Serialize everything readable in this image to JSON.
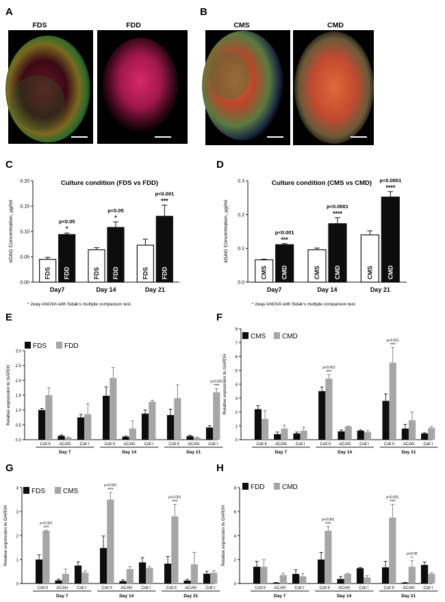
{
  "panels": {
    "A": {
      "letter": "A",
      "labels": [
        "FDS",
        "FDD"
      ]
    },
    "B": {
      "letter": "B",
      "labels": [
        "CMS",
        "CMD"
      ]
    }
  },
  "colors": {
    "open_bar": "#ffffff",
    "black_bar": "#0d0d0d",
    "grey_bar": "#a6a6a6",
    "axis": "#111111"
  },
  "footnote": "* 2way ANOVA with Sidak's multiple comparison test",
  "chart_data": [
    {
      "panel": "C",
      "type": "bar",
      "title": "Culture condition (FDS vs FDD)",
      "ylabel": "sGAG Concentration, µg/ml",
      "ylim": [
        0,
        0.2
      ],
      "yticks": [
        "0.00",
        "0.05",
        "0.10",
        "0.15",
        "0.20"
      ],
      "categories": [
        "Day7",
        "Day 14",
        "Day 21"
      ],
      "series": [
        {
          "name": "FDS",
          "values": [
            0.045,
            0.064,
            0.073
          ],
          "errors": [
            0.004,
            0.004,
            0.012
          ]
        },
        {
          "name": "FDD",
          "values": [
            0.094,
            0.108,
            0.13
          ],
          "errors": [
            0.003,
            0.011,
            0.022
          ]
        }
      ],
      "bar_labels": true,
      "annotations": [
        {
          "cat": 0,
          "text": "p<0.05",
          "stars": "*"
        },
        {
          "cat": 1,
          "text": "p<0.05",
          "stars": "*"
        },
        {
          "cat": 2,
          "text": "p<0.001",
          "stars": "***"
        }
      ]
    },
    {
      "panel": "D",
      "type": "bar",
      "title": "Culture condition (CMS vs CMD)",
      "ylabel": "sGAG Concentration, µg/ml",
      "ylim": [
        0,
        0.3
      ],
      "yticks": [
        "0.0",
        "0.1",
        "0.2",
        "0.3"
      ],
      "categories": [
        "Day7",
        "Day 14",
        "Day 21"
      ],
      "series": [
        {
          "name": "CMS",
          "values": [
            0.066,
            0.096,
            0.14
          ],
          "errors": [
            0.002,
            0.005,
            0.012
          ]
        },
        {
          "name": "CMD",
          "values": [
            0.111,
            0.173,
            0.252
          ],
          "errors": [
            0.003,
            0.018,
            0.016
          ]
        }
      ],
      "bar_labels": true,
      "annotations": [
        {
          "cat": 0,
          "text": "p<0.001",
          "stars": "***"
        },
        {
          "cat": 1,
          "text": "p<0.0001",
          "stars": "****"
        },
        {
          "cat": 2,
          "text": "p<0.0001",
          "stars": "****"
        }
      ]
    },
    {
      "panel": "E",
      "type": "bar",
      "ylabel": "Relative expression to GAPDH",
      "ylim": [
        0,
        3
      ],
      "yticks": [
        "0.0",
        "0.5",
        "1.0",
        "1.5",
        "2.0",
        "2.5",
        "3.0"
      ],
      "categories": [
        "Coll II",
        "ACAN",
        "Coll I",
        "Coll II",
        "ACAN",
        "Coll I",
        "Coll II",
        "ACAN",
        "Coll I"
      ],
      "groups": [
        "Day 7",
        "Day 14",
        "Day 21"
      ],
      "series": [
        {
          "name": "FDS",
          "values": [
            1.0,
            0.13,
            0.75,
            1.48,
            0.1,
            0.88,
            0.83,
            0.12,
            0.41
          ],
          "errors": [
            0.05,
            0.03,
            0.1,
            0.3,
            0.02,
            0.12,
            0.2,
            0.03,
            0.06
          ]
        },
        {
          "name": "FDD",
          "values": [
            1.5,
            0.07,
            0.86,
            2.08,
            0.38,
            1.28,
            1.4,
            0.07,
            1.6
          ],
          "errors": [
            0.25,
            0.02,
            0.35,
            0.35,
            0.25,
            0.05,
            0.45,
            0.02,
            0.12
          ]
        }
      ],
      "annotations": [
        {
          "cat": 8,
          "text": "p<0.001",
          "stars": "***"
        }
      ]
    },
    {
      "panel": "F",
      "type": "bar",
      "ylabel": "Relative expression to GAPDH",
      "ylim": [
        0,
        8
      ],
      "yticks": [
        "0",
        "1",
        "2",
        "3",
        "4",
        "5",
        "6",
        "7",
        "8"
      ],
      "categories": [
        "Coll II",
        "ACAN",
        "Coll I",
        "Coll II",
        "ACAN",
        "Coll I",
        "Coll II",
        "ACAN",
        "Coll I"
      ],
      "groups": [
        "Day 7",
        "Day 14",
        "Day 21"
      ],
      "series": [
        {
          "name": "CMS",
          "values": [
            2.2,
            0.4,
            0.45,
            3.5,
            0.6,
            0.65,
            2.8,
            0.8,
            0.45
          ],
          "errors": [
            0.25,
            0.15,
            0.1,
            0.3,
            0.1,
            0.05,
            0.5,
            0.3,
            0.05
          ]
        },
        {
          "name": "CMD",
          "values": [
            1.5,
            0.8,
            0.65,
            4.4,
            0.95,
            0.55,
            5.55,
            1.4,
            0.85
          ],
          "errors": [
            0.6,
            0.25,
            0.25,
            0.3,
            0.03,
            0.1,
            1.1,
            0.6,
            0.1
          ]
        }
      ],
      "annotations": [
        {
          "cat": 3,
          "text": "p<0.001",
          "stars": "***"
        },
        {
          "cat": 6,
          "text": "p<0.001",
          "stars": "***"
        }
      ]
    },
    {
      "panel": "G",
      "type": "bar",
      "ylabel": "Relative expression to GAPDH",
      "ylim": [
        0,
        4
      ],
      "yticks": [
        "0",
        "1",
        "2",
        "3",
        "4"
      ],
      "categories": [
        "Coll II",
        "ACAN",
        "Coll I",
        "Coll II",
        "ACAN",
        "Coll I",
        "Coll II",
        "ACAN",
        "Coll I"
      ],
      "groups": [
        "Day 7",
        "Day 14",
        "Day 21"
      ],
      "series": [
        {
          "name": "FDS",
          "values": [
            1.0,
            0.13,
            0.75,
            1.48,
            0.1,
            0.88,
            0.83,
            0.12,
            0.41
          ],
          "errors": [
            0.2,
            0.05,
            0.15,
            0.5,
            0.05,
            0.2,
            0.3,
            0.05,
            0.1
          ]
        },
        {
          "name": "CMS",
          "values": [
            2.2,
            0.4,
            0.45,
            3.5,
            0.6,
            0.65,
            2.8,
            0.8,
            0.45
          ],
          "errors": [
            0.02,
            0.2,
            0.08,
            0.3,
            0.1,
            0.05,
            0.5,
            0.5,
            0.08
          ]
        }
      ],
      "annotations": [
        {
          "cat": 0,
          "text": "p<0.001",
          "stars": "***"
        },
        {
          "cat": 3,
          "text": "p<0.001",
          "stars": "***"
        },
        {
          "cat": 6,
          "text": "p<0.001",
          "stars": "***"
        }
      ]
    },
    {
      "panel": "H",
      "type": "bar",
      "ylabel": "Relative expression to GAPDH",
      "ylim": [
        0,
        8
      ],
      "yticks": [
        "0",
        "2",
        "4",
        "6",
        "8"
      ],
      "categories": [
        "Coll II",
        "ACAN",
        "Coll I",
        "Coll II",
        "ACAN",
        "Coll I",
        "Coll II",
        "ACAN",
        "Coll I"
      ],
      "groups": [
        "Day 7",
        "Day 14",
        "Day 21"
      ],
      "series": [
        {
          "name": "FDD",
          "values": [
            1.4,
            0.07,
            0.8,
            2.0,
            0.38,
            1.28,
            1.35,
            0.07,
            1.55
          ],
          "errors": [
            0.45,
            0.02,
            0.35,
            0.6,
            0.2,
            0.05,
            0.5,
            0.02,
            0.25
          ]
        },
        {
          "name": "CMD",
          "values": [
            1.4,
            0.7,
            0.6,
            4.4,
            0.8,
            0.5,
            5.5,
            1.4,
            0.8
          ],
          "errors": [
            0.6,
            0.15,
            0.25,
            0.35,
            0.05,
            0.15,
            1.1,
            0.5,
            0.1
          ]
        }
      ],
      "annotations": [
        {
          "cat": 3,
          "text": "p<0.001",
          "stars": "***"
        },
        {
          "cat": 6,
          "text": "p<0.001",
          "stars": "***"
        },
        {
          "cat": 7,
          "text": "p<0.05",
          "stars": "*"
        }
      ]
    }
  ]
}
